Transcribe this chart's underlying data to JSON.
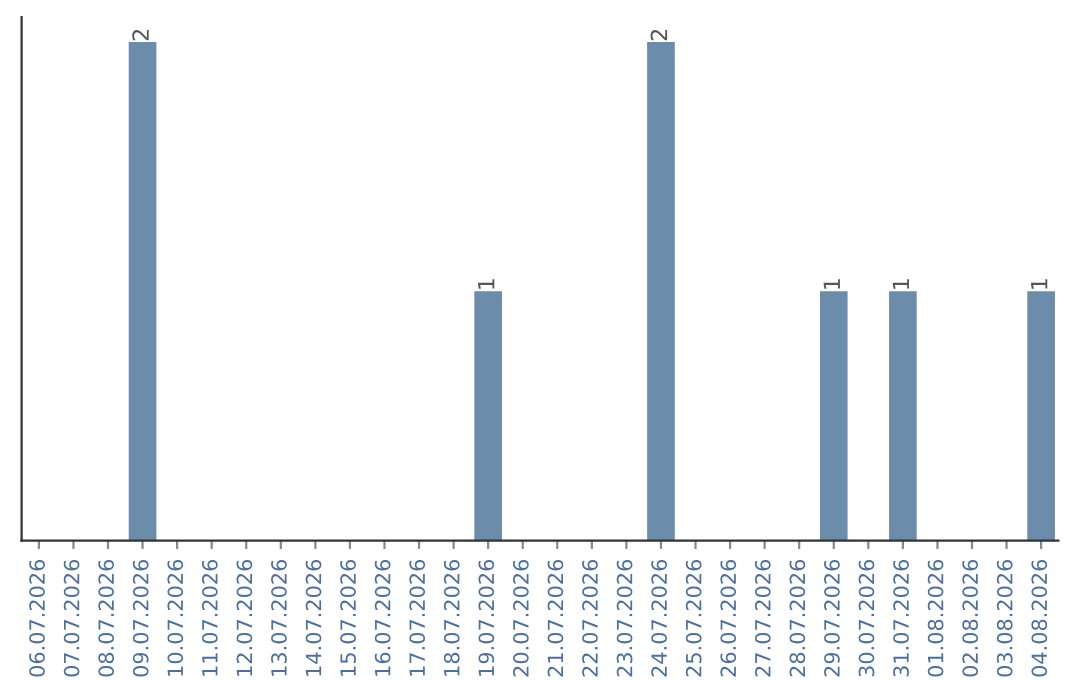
{
  "chart_data": {
    "type": "bar",
    "categories": [
      "06.07.2026",
      "07.07.2026",
      "08.07.2026",
      "09.07.2026",
      "10.07.2026",
      "11.07.2026",
      "12.07.2026",
      "13.07.2026",
      "14.07.2026",
      "15.07.2026",
      "16.07.2026",
      "17.07.2026",
      "18.07.2026",
      "19.07.2026",
      "20.07.2026",
      "21.07.2026",
      "22.07.2026",
      "23.07.2026",
      "24.07.2026",
      "25.07.2026",
      "26.07.2026",
      "27.07.2026",
      "28.07.2026",
      "29.07.2026",
      "30.07.2026",
      "31.07.2026",
      "01.08.2026",
      "02.08.2026",
      "03.08.2026",
      "04.08.2026"
    ],
    "values": [
      0,
      0,
      0,
      2,
      0,
      0,
      0,
      0,
      0,
      0,
      0,
      0,
      0,
      1,
      0,
      0,
      0,
      0,
      2,
      0,
      0,
      0,
      0,
      1,
      0,
      1,
      0,
      0,
      0,
      1
    ],
    "value_labels": [
      null,
      null,
      null,
      "2",
      null,
      null,
      null,
      null,
      null,
      null,
      null,
      null,
      null,
      "1",
      null,
      null,
      null,
      null,
      "2",
      null,
      null,
      null,
      null,
      "1",
      null,
      "1",
      null,
      null,
      null,
      "1"
    ],
    "color": "#6b8cab",
    "tick_labels": "x",
    "grid": false,
    "legend": false
  }
}
